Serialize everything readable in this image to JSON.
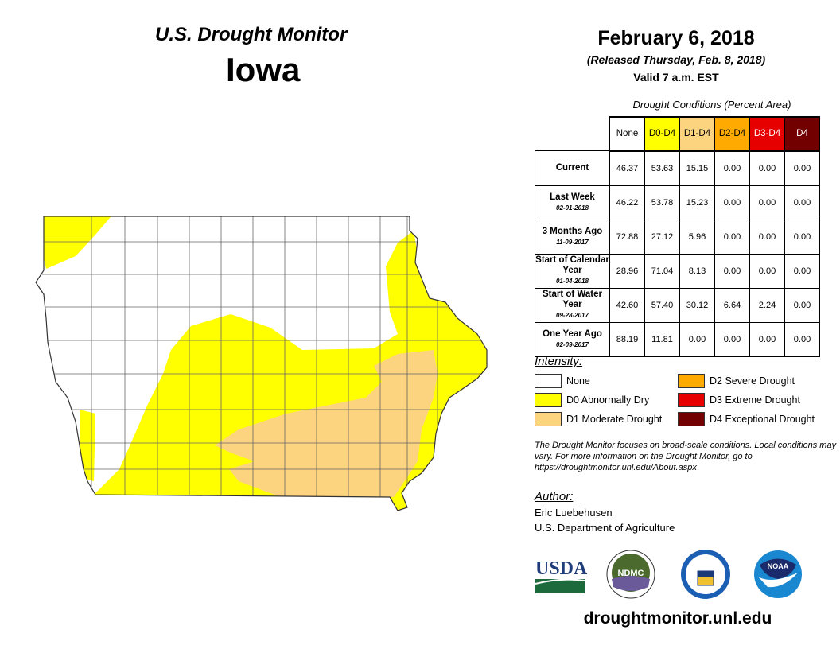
{
  "header": {
    "subtitle": "U.S. Drought Monitor",
    "state": "Iowa",
    "date": "February 6, 2018",
    "released": "(Released Thursday, Feb. 8, 2018)",
    "valid": "Valid 7 a.m. EST"
  },
  "table": {
    "caption": "Drought Conditions (Percent Area)",
    "columns": [
      {
        "label": "None",
        "color": "#ffffff",
        "text": "#000"
      },
      {
        "label": "D0-D4",
        "color": "#ffff00",
        "text": "#000"
      },
      {
        "label": "D1-D4",
        "color": "#fcd37f",
        "text": "#000"
      },
      {
        "label": "D2-D4",
        "color": "#ffaa00",
        "text": "#000"
      },
      {
        "label": "D3-D4",
        "color": "#e60000",
        "text": "#fff"
      },
      {
        "label": "D4",
        "color": "#730000",
        "text": "#fff"
      }
    ],
    "rows": [
      {
        "label": "Current",
        "date": "",
        "values": [
          "46.37",
          "53.63",
          "15.15",
          "0.00",
          "0.00",
          "0.00"
        ]
      },
      {
        "label": "Last Week",
        "date": "02-01-2018",
        "values": [
          "46.22",
          "53.78",
          "15.23",
          "0.00",
          "0.00",
          "0.00"
        ]
      },
      {
        "label": "3 Months Ago",
        "date": "11-09-2017",
        "values": [
          "72.88",
          "27.12",
          "5.96",
          "0.00",
          "0.00",
          "0.00"
        ]
      },
      {
        "label": "Start of Calendar Year",
        "date": "01-04-2018",
        "values": [
          "28.96",
          "71.04",
          "8.13",
          "0.00",
          "0.00",
          "0.00"
        ]
      },
      {
        "label": "Start of Water Year",
        "date": "09-28-2017",
        "values": [
          "42.60",
          "57.40",
          "30.12",
          "6.64",
          "2.24",
          "0.00"
        ]
      },
      {
        "label": "One Year Ago",
        "date": "02-09-2017",
        "values": [
          "88.19",
          "11.81",
          "0.00",
          "0.00",
          "0.00",
          "0.00"
        ]
      }
    ]
  },
  "legend": {
    "title": "Intensity:",
    "items": [
      {
        "label": "None",
        "color": "#ffffff"
      },
      {
        "label": "D0 Abnormally Dry",
        "color": "#ffff00"
      },
      {
        "label": "D1 Moderate Drought",
        "color": "#fcd37f"
      },
      {
        "label": "D2 Severe Drought",
        "color": "#ffaa00"
      },
      {
        "label": "D3 Extreme Drought",
        "color": "#e60000"
      },
      {
        "label": "D4 Exceptional Drought",
        "color": "#730000"
      }
    ]
  },
  "note": "The Drought Monitor focuses on broad-scale conditions. Local conditions may vary. For more information on the Drought Monitor, go to https://droughtmonitor.unl.edu/About.aspx",
  "author": {
    "heading": "Author:",
    "name": "Eric Luebehusen",
    "org": "U.S. Department of Agriculture"
  },
  "logos": [
    "USDA",
    "NDMC",
    "Department of Commerce",
    "NOAA"
  ],
  "url": "droughtmonitor.unl.edu"
}
